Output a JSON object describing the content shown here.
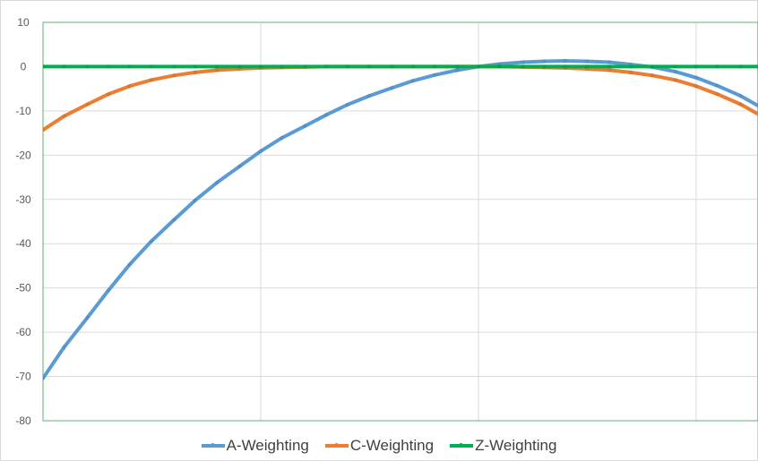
{
  "chart_data": {
    "type": "line",
    "title": "",
    "xlabel": "",
    "ylabel": "",
    "ylim": [
      -80,
      10
    ],
    "yticks": [
      10,
      0,
      -10,
      -20,
      -30,
      -40,
      -50,
      -60,
      -70,
      -80
    ],
    "xscale": "log",
    "xlim": [
      10,
      20000
    ],
    "x": [
      10,
      12.5,
      16,
      20,
      25,
      31.5,
      40,
      50,
      63,
      80,
      100,
      125,
      160,
      200,
      250,
      315,
      400,
      500,
      630,
      800,
      1000,
      1250,
      1600,
      2000,
      2500,
      3150,
      4000,
      5000,
      6300,
      8000,
      10000,
      12500,
      16000,
      20000
    ],
    "grid": true,
    "legend_position": "bottom",
    "series": [
      {
        "name": "A-Weighting",
        "color": "#5b9bd5",
        "values": [
          -70.4,
          -63.4,
          -56.7,
          -50.5,
          -44.7,
          -39.4,
          -34.6,
          -30.2,
          -26.2,
          -22.5,
          -19.1,
          -16.1,
          -13.4,
          -10.9,
          -8.6,
          -6.6,
          -4.8,
          -3.2,
          -1.9,
          -0.8,
          0.0,
          0.6,
          1.0,
          1.2,
          1.3,
          1.2,
          1.0,
          0.5,
          -0.1,
          -1.1,
          -2.5,
          -4.3,
          -6.6,
          -9.3
        ]
      },
      {
        "name": "C-Weighting",
        "color": "#ed7d31",
        "values": [
          -14.3,
          -11.2,
          -8.5,
          -6.2,
          -4.4,
          -3.0,
          -2.0,
          -1.3,
          -0.8,
          -0.5,
          -0.3,
          -0.2,
          -0.1,
          0.0,
          0.0,
          0.0,
          0.0,
          0.0,
          0.0,
          0.0,
          0.0,
          0.0,
          -0.1,
          -0.2,
          -0.3,
          -0.5,
          -0.8,
          -1.3,
          -2.0,
          -3.0,
          -4.4,
          -6.2,
          -8.5,
          -11.2
        ]
      },
      {
        "name": "Z-Weighting",
        "color": "#00b050",
        "values": [
          0,
          0,
          0,
          0,
          0,
          0,
          0,
          0,
          0,
          0,
          0,
          0,
          0,
          0,
          0,
          0,
          0,
          0,
          0,
          0,
          0,
          0,
          0,
          0,
          0,
          0,
          0,
          0,
          0,
          0,
          0,
          0,
          0,
          0
        ]
      }
    ]
  }
}
